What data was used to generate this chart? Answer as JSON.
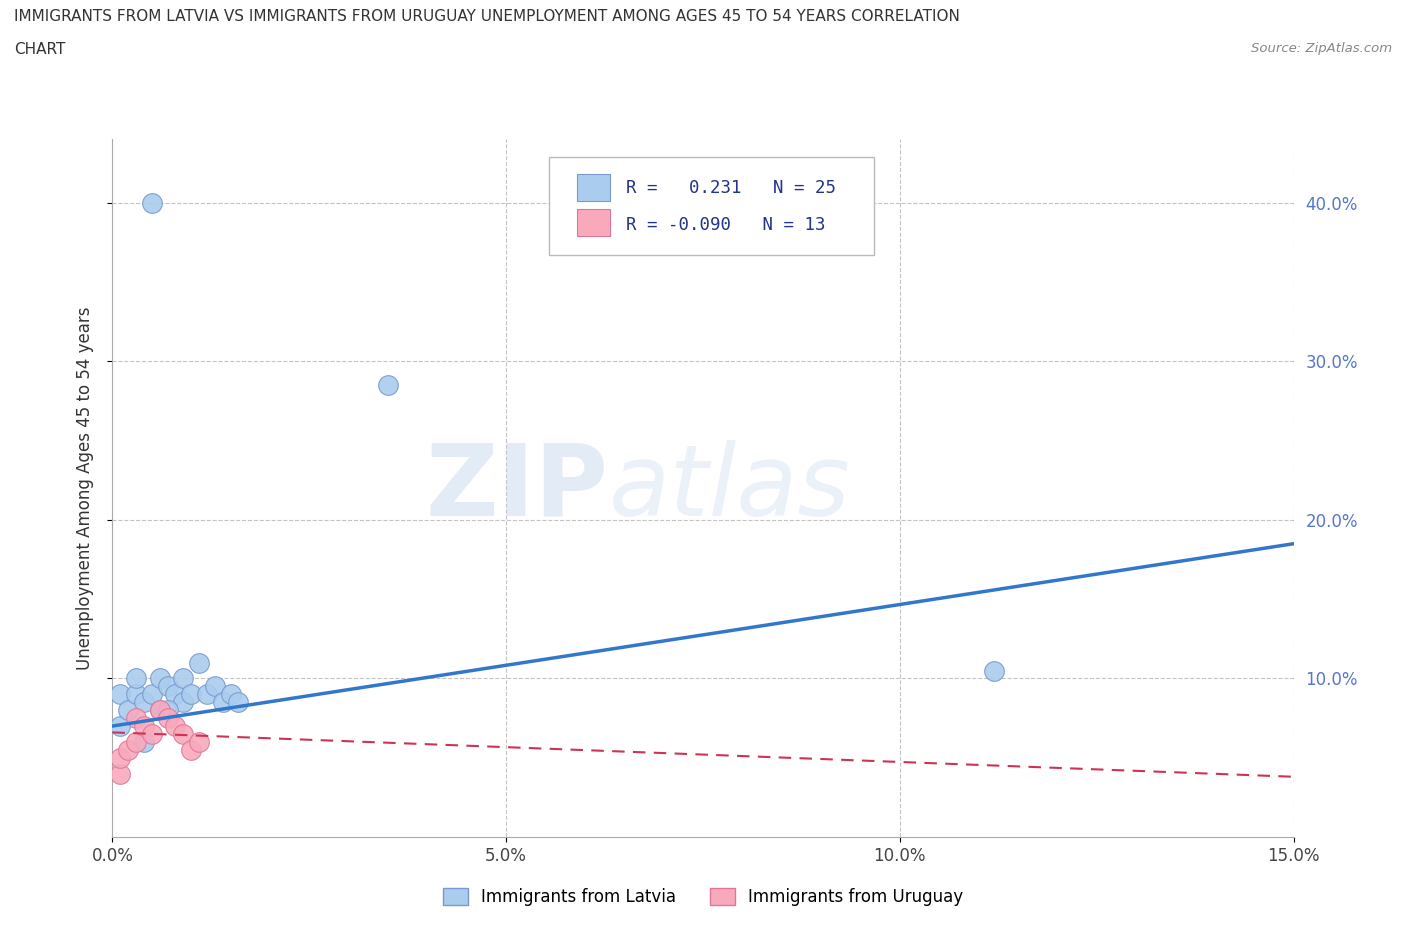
{
  "title_line1": "IMMIGRANTS FROM LATVIA VS IMMIGRANTS FROM URUGUAY UNEMPLOYMENT AMONG AGES 45 TO 54 YEARS CORRELATION",
  "title_line2": "CHART",
  "source_text": "Source: ZipAtlas.com",
  "ylabel": "Unemployment Among Ages 45 to 54 years",
  "xlim": [
    0.0,
    0.15
  ],
  "ylim": [
    0.0,
    0.44
  ],
  "xticks": [
    0.0,
    0.05,
    0.1,
    0.15
  ],
  "xtick_labels": [
    "0.0%",
    "5.0%",
    "10.0%",
    "15.0%"
  ],
  "yticks": [
    0.1,
    0.2,
    0.3,
    0.4
  ],
  "ytick_labels": [
    "10.0%",
    "20.0%",
    "30.0%",
    "40.0%"
  ],
  "latvia_color": "#aaccee",
  "latvia_edge": "#7799cc",
  "uruguay_color": "#f8aabc",
  "uruguay_edge": "#dd7799",
  "regression_latvia_color": "#3377cc",
  "regression_uruguay_color": "#cc3355",
  "R_latvia": 0.231,
  "N_latvia": 25,
  "R_uruguay": -0.09,
  "N_uruguay": 13,
  "watermark_zip": "ZIP",
  "watermark_atlas": "atlas",
  "legend_label_latvia": "Immigrants from Latvia",
  "legend_label_uruguay": "Immigrants from Uruguay",
  "latvia_x": [
    0.001,
    0.001,
    0.002,
    0.003,
    0.003,
    0.004,
    0.005,
    0.006,
    0.006,
    0.007,
    0.008,
    0.009,
    0.009,
    0.01,
    0.011,
    0.012,
    0.013,
    0.014,
    0.015,
    0.016,
    0.004,
    0.007,
    0.035,
    0.112,
    0.005
  ],
  "latvia_y": [
    0.07,
    0.09,
    0.08,
    0.09,
    0.1,
    0.085,
    0.09,
    0.08,
    0.1,
    0.095,
    0.09,
    0.085,
    0.1,
    0.09,
    0.11,
    0.09,
    0.095,
    0.085,
    0.09,
    0.085,
    0.06,
    0.08,
    0.285,
    0.105,
    0.4
  ],
  "uruguay_x": [
    0.001,
    0.001,
    0.002,
    0.003,
    0.003,
    0.004,
    0.005,
    0.006,
    0.007,
    0.008,
    0.009,
    0.01,
    0.011
  ],
  "uruguay_y": [
    0.04,
    0.05,
    0.055,
    0.06,
    0.075,
    0.07,
    0.065,
    0.08,
    0.075,
    0.07,
    0.065,
    0.055,
    0.06
  ],
  "regression_latvia_x0": 0.0,
  "regression_latvia_y0": 0.07,
  "regression_latvia_x1": 0.15,
  "regression_latvia_y1": 0.185,
  "regression_uruguay_x0": 0.0,
  "regression_uruguay_y0": 0.066,
  "regression_uruguay_x1": 0.15,
  "regression_uruguay_y1": 0.038
}
